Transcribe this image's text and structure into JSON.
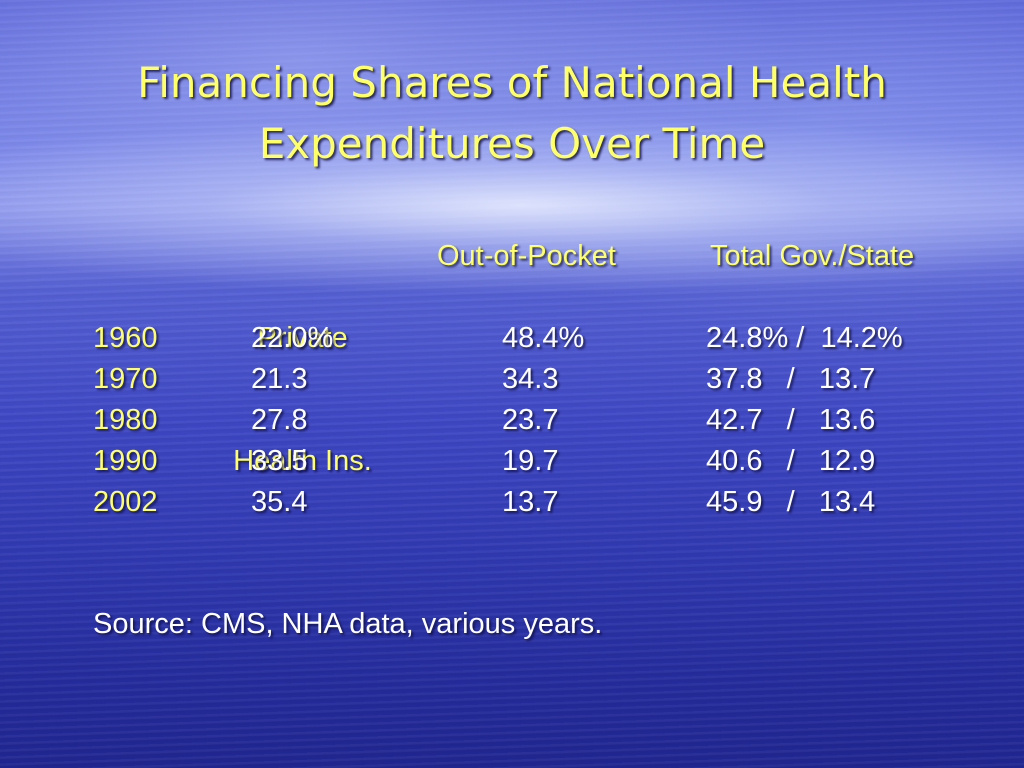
{
  "slide": {
    "title_line1": "Financing Shares of National Health",
    "title_line2": "Expenditures Over Time"
  },
  "table": {
    "headers": {
      "private_line1": "Private",
      "private_line2": "Health Ins.",
      "out_of_pocket": "Out-of-Pocket",
      "government": "Total Gov./State"
    },
    "rows": [
      {
        "year": "1960",
        "private": "22.0%",
        "oop": "48.4%",
        "gov": "24.8% /  14.2%"
      },
      {
        "year": "1970",
        "private": "21.3",
        "oop": "34.3",
        "gov": "37.8   /   13.7"
      },
      {
        "year": "1980",
        "private": "27.8",
        "oop": "23.7",
        "gov": "42.7   /   13.6"
      },
      {
        "year": "1990",
        "private": "33.5",
        "oop": "19.7",
        "gov": "40.6   /   12.9"
      },
      {
        "year": "2002",
        "private": "35.4",
        "oop": "13.7",
        "gov": "45.9   /   13.4"
      }
    ]
  },
  "source": "Source: CMS, NHA data, various years.",
  "colors": {
    "title": "#ffff66",
    "year_labels": "#ffff66",
    "body_text": "#ffffff",
    "background": "#3039b0"
  }
}
